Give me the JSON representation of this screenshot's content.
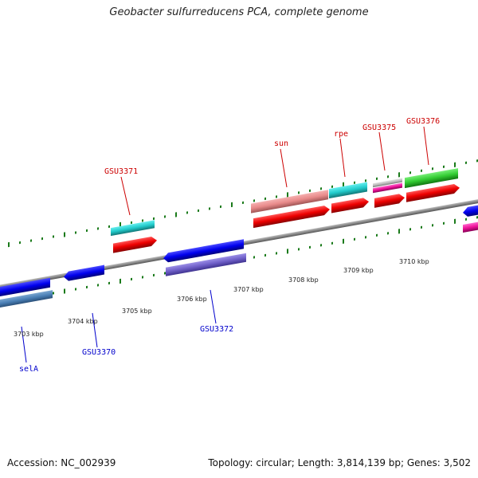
{
  "title": "Geobacter sulfurreducens PCA, complete genome",
  "footer": {
    "accession": "Accession: NC_002939",
    "topology": "Topology: circular; Length: 3,814,139 bp; Genes: 3,502"
  },
  "colors": {
    "backbone": "#8a8a8a",
    "forward_label": "#cc0000",
    "reverse_label": "#0000cc",
    "tick": "#1a7a1a"
  },
  "kbp_ticks": [
    {
      "label": "3703 kbp",
      "kbp": 3703
    },
    {
      "label": "3704 kbp",
      "kbp": 3704
    },
    {
      "label": "3705 kbp",
      "kbp": 3705
    },
    {
      "label": "3706 kbp",
      "kbp": 3706
    },
    {
      "label": "3707 kbp",
      "kbp": 3707
    },
    {
      "label": "3708 kbp",
      "kbp": 3708
    },
    {
      "label": "3709 kbp",
      "kbp": 3709
    },
    {
      "label": "3710 kbp",
      "kbp": 3710
    }
  ],
  "gene_labels": [
    {
      "label": "GSU3371",
      "strand": "forward"
    },
    {
      "label": "sun",
      "strand": "forward"
    },
    {
      "label": "rpe",
      "strand": "forward"
    },
    {
      "label": "GSU3375",
      "strand": "forward"
    },
    {
      "label": "GSU3376",
      "strand": "forward"
    },
    {
      "label": "selA",
      "strand": "reverse"
    },
    {
      "label": "GSU3370",
      "strand": "reverse"
    },
    {
      "label": "GSU3372",
      "strand": "reverse"
    }
  ]
}
